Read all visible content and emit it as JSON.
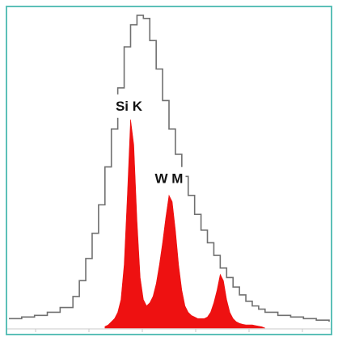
{
  "chart_data": {
    "type": "area",
    "title": "",
    "xlabel": "",
    "ylabel": "",
    "xlim": [
      0,
      100
    ],
    "ylim": [
      0,
      100
    ],
    "grid": false,
    "x_tick_count": 6,
    "series": [
      {
        "name": "",
        "style": "step-outline",
        "color": "#707070",
        "x": [
          0,
          4,
          8,
          12,
          16,
          20,
          22,
          24,
          26,
          28,
          30,
          32,
          34,
          36,
          38,
          40,
          42,
          44,
          46,
          48,
          50,
          52,
          54,
          56,
          58,
          60,
          62,
          64,
          66,
          68,
          70,
          72,
          74,
          76,
          78,
          80,
          84,
          88,
          92,
          96,
          100
        ],
        "values": [
          3,
          3.5,
          4,
          5,
          6.5,
          10,
          15,
          22,
          30,
          39,
          51,
          63,
          76,
          89,
          96,
          99,
          98,
          91,
          82,
          72,
          63,
          55,
          48,
          42,
          36,
          31,
          27,
          23,
          19,
          16,
          13,
          10.5,
          8.5,
          7,
          6,
          5,
          4,
          3.5,
          3,
          2.5,
          2
        ]
      },
      {
        "name": "",
        "style": "filled",
        "color": "#ee1111",
        "x": [
          30,
          31,
          32,
          33,
          34,
          35,
          36,
          37,
          38,
          39,
          40,
          41,
          42,
          43,
          44,
          45,
          46,
          47,
          48,
          49,
          50,
          51,
          52,
          53,
          54,
          55,
          56,
          57,
          58,
          59,
          60,
          61,
          62,
          63,
          64,
          65,
          66,
          67,
          68,
          69,
          70,
          71,
          72,
          73,
          74,
          75,
          76,
          77,
          78,
          79,
          80
        ],
        "values": [
          0.5,
          1,
          2,
          3,
          5,
          9,
          20,
          42,
          66,
          58,
          34,
          16,
          9,
          7,
          8,
          10,
          14,
          20,
          27,
          35,
          42,
          40,
          31,
          20,
          12,
          7,
          5,
          4,
          3.5,
          3,
          3,
          3,
          3.5,
          5,
          8,
          12,
          17,
          15,
          9,
          5,
          3,
          2,
          1.5,
          1.2,
          1,
          1,
          1,
          0.8,
          0.6,
          0.4,
          0
        ]
      }
    ],
    "annotations": [
      {
        "text": "Si K",
        "x": 37.5,
        "y": 70
      },
      {
        "text": "W M",
        "x": 50,
        "y": 47
      }
    ]
  }
}
